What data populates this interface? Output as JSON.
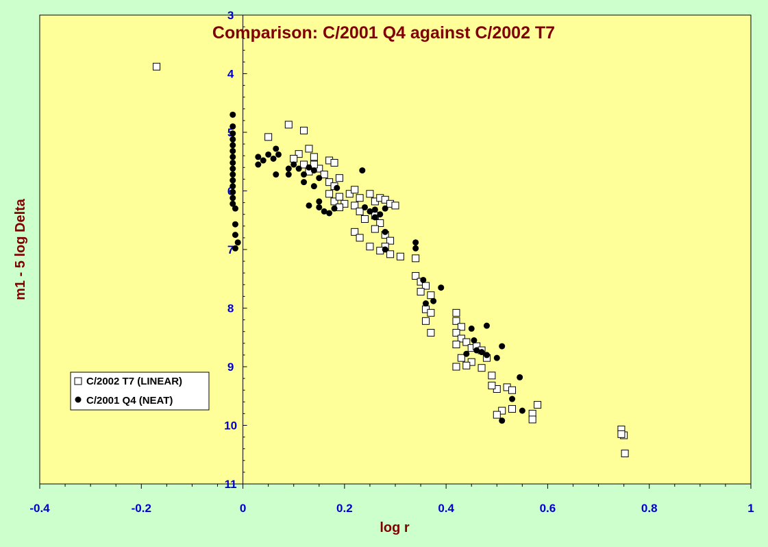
{
  "chart_data": {
    "type": "scatter",
    "title": "Comparison: C/2001 Q4 against C/2002 T7",
    "xlabel": "log r",
    "ylabel": "m1 - 5 log Delta",
    "xlim": [
      -0.4,
      1
    ],
    "ylim": [
      3,
      11
    ],
    "y_inverted": true,
    "x_ticks": [
      "-0.4",
      "-0.2",
      "0",
      "0.2",
      "0.4",
      "0.6",
      "0.8",
      "1"
    ],
    "y_ticks": [
      "3",
      "4",
      "5",
      "6",
      "7",
      "8",
      "9",
      "10",
      "11"
    ],
    "grid": false,
    "legend_position": "bottom-left",
    "colors": {
      "background": "#ccffcc",
      "plot_area": "#ffff99",
      "title": "#800000",
      "ticks": "#0000cc",
      "axis": "#000000"
    },
    "series": [
      {
        "name": "C/2002 T7 (LINEAR)",
        "marker": "open-square",
        "points": [
          [
            -0.17,
            3.88
          ],
          [
            0.05,
            5.08
          ],
          [
            0.09,
            4.87
          ],
          [
            0.12,
            4.97
          ],
          [
            0.11,
            5.37
          ],
          [
            0.13,
            5.28
          ],
          [
            0.14,
            5.42
          ],
          [
            0.12,
            5.55
          ],
          [
            0.13,
            5.67
          ],
          [
            0.1,
            5.45
          ],
          [
            0.15,
            5.62
          ],
          [
            0.14,
            5.55
          ],
          [
            0.16,
            5.72
          ],
          [
            0.17,
            5.48
          ],
          [
            0.18,
            5.52
          ],
          [
            0.17,
            5.85
          ],
          [
            0.18,
            5.92
          ],
          [
            0.19,
            5.78
          ],
          [
            0.17,
            6.05
          ],
          [
            0.18,
            6.18
          ],
          [
            0.19,
            6.1
          ],
          [
            0.2,
            6.22
          ],
          [
            0.21,
            6.05
          ],
          [
            0.22,
            6.25
          ],
          [
            0.19,
            6.28
          ],
          [
            0.22,
            5.98
          ],
          [
            0.23,
            6.12
          ],
          [
            0.23,
            6.35
          ],
          [
            0.24,
            6.48
          ],
          [
            0.25,
            6.05
          ],
          [
            0.26,
            6.18
          ],
          [
            0.27,
            6.12
          ],
          [
            0.28,
            6.15
          ],
          [
            0.29,
            6.22
          ],
          [
            0.3,
            6.25
          ],
          [
            0.26,
            6.42
          ],
          [
            0.27,
            6.55
          ],
          [
            0.26,
            6.65
          ],
          [
            0.28,
            6.75
          ],
          [
            0.29,
            6.85
          ],
          [
            0.28,
            6.95
          ],
          [
            0.25,
            6.95
          ],
          [
            0.27,
            7.02
          ],
          [
            0.29,
            7.08
          ],
          [
            0.31,
            7.12
          ],
          [
            0.22,
            6.7
          ],
          [
            0.23,
            6.8
          ],
          [
            0.34,
            7.15
          ],
          [
            0.34,
            7.45
          ],
          [
            0.35,
            7.55
          ],
          [
            0.36,
            7.62
          ],
          [
            0.35,
            7.72
          ],
          [
            0.37,
            7.78
          ],
          [
            0.36,
            8.02
          ],
          [
            0.37,
            8.08
          ],
          [
            0.36,
            8.22
          ],
          [
            0.37,
            8.42
          ],
          [
            0.42,
            8.08
          ],
          [
            0.42,
            8.22
          ],
          [
            0.43,
            8.32
          ],
          [
            0.42,
            8.42
          ],
          [
            0.43,
            8.52
          ],
          [
            0.42,
            8.62
          ],
          [
            0.44,
            8.58
          ],
          [
            0.45,
            8.68
          ],
          [
            0.46,
            8.65
          ],
          [
            0.47,
            8.72
          ],
          [
            0.43,
            8.85
          ],
          [
            0.45,
            8.92
          ],
          [
            0.44,
            8.98
          ],
          [
            0.47,
            9.02
          ],
          [
            0.42,
            9.0
          ],
          [
            0.48,
            8.85
          ],
          [
            0.49,
            9.15
          ],
          [
            0.5,
            9.38
          ],
          [
            0.49,
            9.32
          ],
          [
            0.52,
            9.35
          ],
          [
            0.53,
            9.4
          ],
          [
            0.51,
            9.75
          ],
          [
            0.53,
            9.72
          ],
          [
            0.57,
            9.8
          ],
          [
            0.57,
            9.9
          ],
          [
            0.58,
            9.65
          ],
          [
            0.5,
            9.82
          ],
          [
            0.745,
            10.07
          ],
          [
            0.75,
            10.17
          ],
          [
            0.745,
            10.15
          ],
          [
            0.752,
            10.48
          ]
        ]
      },
      {
        "name": "C/2001 Q4 (NEAT)",
        "marker": "filled-circle",
        "points": [
          [
            -0.02,
            4.7
          ],
          [
            -0.02,
            4.9
          ],
          [
            -0.02,
            5.02
          ],
          [
            -0.02,
            5.12
          ],
          [
            -0.02,
            5.22
          ],
          [
            -0.02,
            5.32
          ],
          [
            -0.02,
            5.42
          ],
          [
            -0.02,
            5.52
          ],
          [
            -0.02,
            5.62
          ],
          [
            -0.02,
            5.72
          ],
          [
            -0.02,
            5.82
          ],
          [
            -0.02,
            5.92
          ],
          [
            -0.02,
            6.02
          ],
          [
            -0.02,
            6.12
          ],
          [
            -0.02,
            6.22
          ],
          [
            -0.015,
            6.3
          ],
          [
            -0.015,
            6.57
          ],
          [
            -0.015,
            6.75
          ],
          [
            -0.01,
            6.88
          ],
          [
            -0.015,
            6.98
          ],
          [
            0.03,
            5.42
          ],
          [
            0.03,
            5.55
          ],
          [
            0.04,
            5.48
          ],
          [
            0.05,
            5.38
          ],
          [
            0.06,
            5.45
          ],
          [
            0.07,
            5.38
          ],
          [
            0.065,
            5.28
          ],
          [
            0.065,
            5.72
          ],
          [
            0.09,
            5.62
          ],
          [
            0.09,
            5.72
          ],
          [
            0.1,
            5.55
          ],
          [
            0.11,
            5.62
          ],
          [
            0.12,
            5.72
          ],
          [
            0.12,
            5.85
          ],
          [
            0.13,
            5.6
          ],
          [
            0.14,
            5.65
          ],
          [
            0.14,
            5.92
          ],
          [
            0.15,
            5.78
          ],
          [
            0.15,
            6.18
          ],
          [
            0.13,
            6.25
          ],
          [
            0.15,
            6.28
          ],
          [
            0.16,
            6.35
          ],
          [
            0.17,
            6.38
          ],
          [
            0.18,
            6.3
          ],
          [
            0.185,
            5.95
          ],
          [
            0.235,
            5.65
          ],
          [
            0.24,
            6.28
          ],
          [
            0.25,
            6.35
          ],
          [
            0.26,
            6.45
          ],
          [
            0.27,
            6.4
          ],
          [
            0.26,
            6.32
          ],
          [
            0.28,
            6.3
          ],
          [
            0.28,
            6.7
          ],
          [
            0.28,
            7.0
          ],
          [
            0.34,
            6.88
          ],
          [
            0.34,
            6.98
          ],
          [
            0.355,
            7.52
          ],
          [
            0.36,
            7.92
          ],
          [
            0.375,
            7.88
          ],
          [
            0.39,
            7.65
          ],
          [
            0.44,
            8.78
          ],
          [
            0.45,
            8.35
          ],
          [
            0.455,
            8.55
          ],
          [
            0.46,
            8.72
          ],
          [
            0.47,
            8.75
          ],
          [
            0.48,
            8.8
          ],
          [
            0.48,
            8.3
          ],
          [
            0.5,
            8.85
          ],
          [
            0.51,
            8.65
          ],
          [
            0.51,
            9.92
          ],
          [
            0.53,
            9.55
          ],
          [
            0.545,
            9.18
          ],
          [
            0.55,
            9.75
          ]
        ]
      }
    ]
  }
}
